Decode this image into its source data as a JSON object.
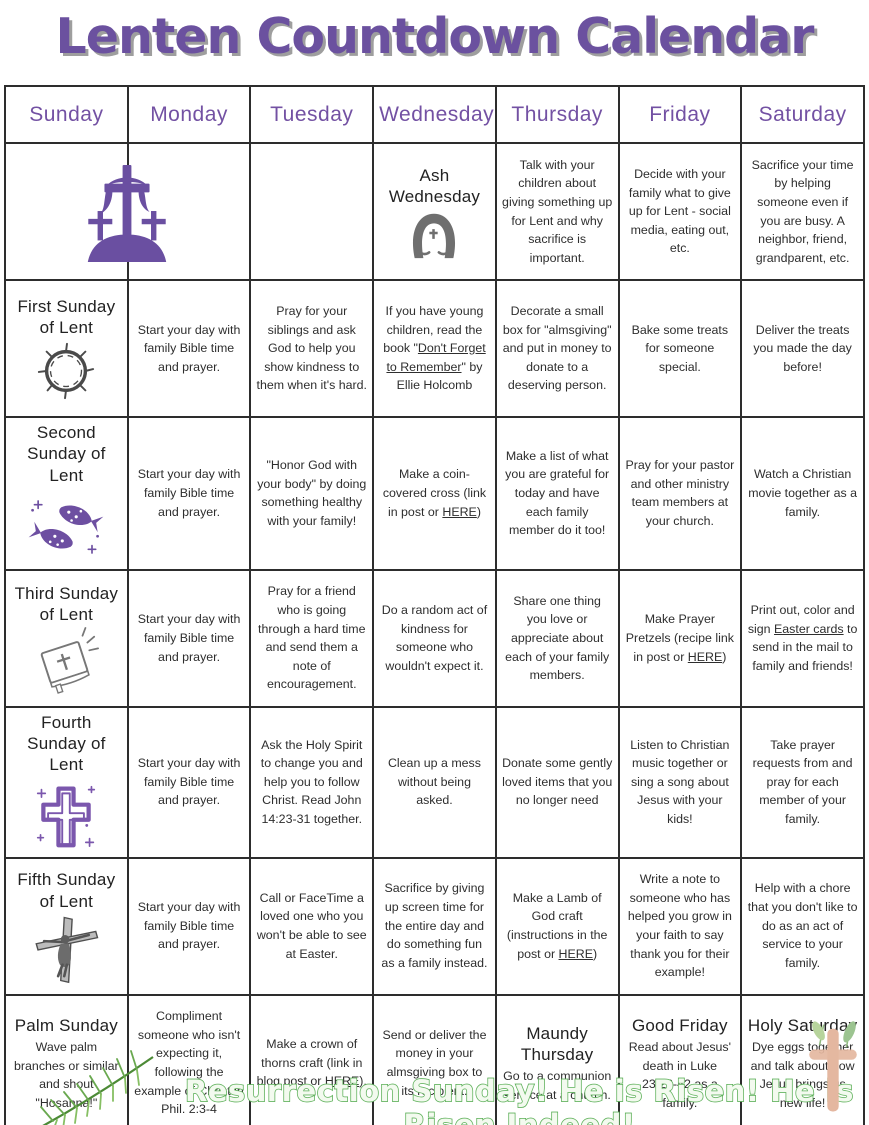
{
  "title": "Lenten Countdown Calendar",
  "footer": "Resurrection Sunday! He is Risen! He is Risen Indeed!",
  "colors": {
    "title_purple": "#6b519f",
    "header_purple": "#7351a3",
    "icon_purple": "#6d4fa1",
    "grid_line": "#2d2d2d",
    "footer_green": "#55ab51",
    "watercolor_peach": "#e4b7a0"
  },
  "days": [
    "Sunday",
    "Monday",
    "Tuesday",
    "Wednesday",
    "Thursday",
    "Friday",
    "Saturday"
  ],
  "decorations": {
    "bottom_right": "watercolor-cross"
  },
  "weeks": [
    [
      {
        "icon": "three-crosses",
        "icon_span": 2
      },
      {},
      {},
      {
        "heading": "Ash Wednesday",
        "icon": "ash-wednesday-face"
      },
      {
        "text": [
          {
            "t": "Talk with your children about giving something up for Lent and why sacrifice is important."
          }
        ]
      },
      {
        "text": [
          {
            "t": "Decide with your family what to give up for Lent - social media, eating out, etc."
          }
        ]
      },
      {
        "text": [
          {
            "t": "Sacrifice your time by helping someone even if you are busy. A neighbor, friend, grandparent, etc."
          }
        ]
      }
    ],
    [
      {
        "heading": "First Sunday of Lent",
        "icon": "crown-of-thorns"
      },
      {
        "text": [
          {
            "t": "Start your day with family Bible time and prayer."
          }
        ]
      },
      {
        "text": [
          {
            "t": "Pray for your siblings and ask God to help you show kindness to them when it's hard."
          }
        ]
      },
      {
        "text": [
          {
            "t": "If you have young children, read the book \""
          },
          {
            "t": "Don't Forget to Remember",
            "u": true
          },
          {
            "t": "\" by Ellie Holcomb"
          }
        ]
      },
      {
        "text": [
          {
            "t": "Decorate a small box for \"almsgiving\" and put in money to donate to a deserving person."
          }
        ]
      },
      {
        "text": [
          {
            "t": "Bake some treats for someone special."
          }
        ]
      },
      {
        "text": [
          {
            "t": "Deliver the treats you made the day before!"
          }
        ]
      }
    ],
    [
      {
        "heading": "Second Sunday of Lent",
        "icon": "two-fish"
      },
      {
        "text": [
          {
            "t": "Start your day with family Bible time and prayer."
          }
        ]
      },
      {
        "text": [
          {
            "t": "\"Honor God with your body\" by doing something healthy with your family!"
          }
        ]
      },
      {
        "text": [
          {
            "t": "Make a coin-covered cross (link in post or "
          },
          {
            "t": "HERE",
            "u": true
          },
          {
            "t": ")"
          }
        ]
      },
      {
        "text": [
          {
            "t": "Make a list of what you are grateful for today and have each family member do it too!"
          }
        ]
      },
      {
        "text": [
          {
            "t": "Pray for your pastor and other ministry team members at your church."
          }
        ]
      },
      {
        "text": [
          {
            "t": "Watch a Christian movie together as a family."
          }
        ]
      }
    ],
    [
      {
        "heading": "Third Sunday of Lent",
        "icon": "bible"
      },
      {
        "text": [
          {
            "t": "Start your day with family Bible time and prayer."
          }
        ]
      },
      {
        "text": [
          {
            "t": "Pray for a friend who is going through a hard time and send them a note of encouragement."
          }
        ]
      },
      {
        "text": [
          {
            "t": "Do a random act of kindness for someone who wouldn't expect it."
          }
        ]
      },
      {
        "text": [
          {
            "t": "Share one thing you love or appreciate about each of your family members."
          }
        ]
      },
      {
        "text": [
          {
            "t": "Make Prayer Pretzels (recipe link in post or "
          },
          {
            "t": "HERE",
            "u": true
          },
          {
            "t": ")"
          }
        ]
      },
      {
        "text": [
          {
            "t": "Print out, color and sign "
          },
          {
            "t": "Easter cards",
            "u": true
          },
          {
            "t": " to send in the mail to family and friends!"
          }
        ]
      }
    ],
    [
      {
        "heading": "Fourth Sunday of Lent",
        "icon": "sparkle-cross"
      },
      {
        "text": [
          {
            "t": "Start your day with family Bible time and prayer."
          }
        ]
      },
      {
        "text": [
          {
            "t": "Ask the Holy Spirit to change you and help you to follow Christ. Read John 14:23-31 together."
          }
        ]
      },
      {
        "text": [
          {
            "t": "Clean up a mess without being asked."
          }
        ]
      },
      {
        "text": [
          {
            "t": "Donate some gently loved items that you no longer need"
          }
        ]
      },
      {
        "text": [
          {
            "t": "Listen to Christian music together or sing a song about Jesus with your kids!"
          }
        ]
      },
      {
        "text": [
          {
            "t": "Take prayer requests from and pray for each member of your family."
          }
        ]
      }
    ],
    [
      {
        "heading": "Fifth Sunday of Lent",
        "icon": "crucifix"
      },
      {
        "text": [
          {
            "t": "Start your day with family Bible time and prayer."
          }
        ]
      },
      {
        "text": [
          {
            "t": "Call or FaceTime a loved one who you won't be able to see at Easter."
          }
        ]
      },
      {
        "text": [
          {
            "t": "Sacrifice by giving up screen time for the entire day and do something fun as a family instead."
          }
        ]
      },
      {
        "text": [
          {
            "t": "Make a Lamb of God craft (instructions in the post or "
          },
          {
            "t": "HERE",
            "u": true
          },
          {
            "t": ")"
          }
        ]
      },
      {
        "text": [
          {
            "t": "Write a note to someone who has helped you grow in your faith to say thank you for their example!"
          }
        ]
      },
      {
        "text": [
          {
            "t": "Help with a chore that you don't like to do as an act of service to your family."
          }
        ]
      }
    ],
    [
      {
        "heading": "Palm Sunday",
        "text": [
          {
            "t": "Wave palm branches or similar and shout \"Hosanna!\""
          }
        ],
        "icon": "palm-branch",
        "icon_pos": "after-text",
        "icon_overlay": true
      },
      {
        "text": [
          {
            "t": "Compliment someone who isn't expecting it, following the example of Christ in Phil. 2:3-4"
          }
        ]
      },
      {
        "text": [
          {
            "t": "Make a crown of thorns craft (link in blog post or "
          },
          {
            "t": "HERE",
            "u": true
          },
          {
            "t": ")."
          }
        ]
      },
      {
        "text": [
          {
            "t": "Send or deliver the money in your almsgiving box to its recipient."
          }
        ]
      },
      {
        "heading": "Maundy Thursday",
        "text": [
          {
            "t": "Go to a communion service at a church."
          }
        ]
      },
      {
        "heading": "Good Friday",
        "text": [
          {
            "t": "Read about Jesus' death in Luke 23:26-42 as a family."
          }
        ]
      },
      {
        "heading": "Holy Saturday",
        "text": [
          {
            "t": "Dye eggs together and talk about how Jesus brings us new life!"
          }
        ]
      }
    ]
  ]
}
